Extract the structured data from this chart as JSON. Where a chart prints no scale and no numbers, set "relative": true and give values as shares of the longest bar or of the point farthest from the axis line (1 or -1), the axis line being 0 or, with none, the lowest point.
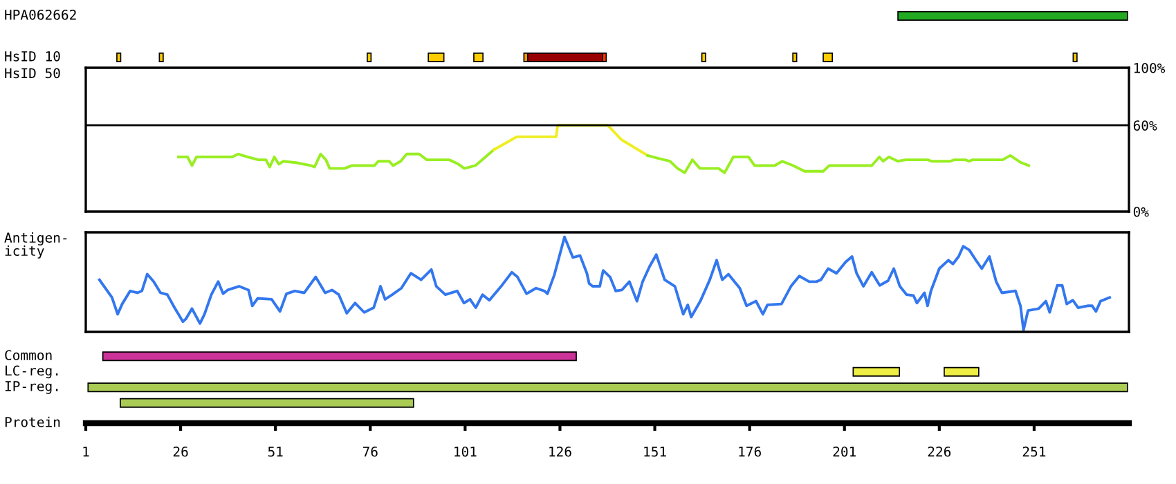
{
  "chart_data": [
    {
      "type": "bar",
      "orientation": "horizontal",
      "categories": [
        "HPA062662"
      ],
      "xlim": [
        1,
        276
      ],
      "tick_labels": "y",
      "series": [
        {
          "color": "#22aa22",
          "base": [
            215.1
          ],
          "values": [
            60.5
          ]
        }
      ]
    },
    {
      "type": "bar",
      "orientation": "horizontal",
      "categories": [
        "HsID 10"
      ],
      "xlim": [
        1,
        276
      ],
      "tick_labels": "y",
      "series": [
        {
          "color": "#ffcc00",
          "base": [
            9.2
          ],
          "values": [
            1
          ]
        },
        {
          "color": "#ffcc00",
          "base": [
            20.4
          ],
          "values": [
            1
          ]
        },
        {
          "color": "#ffcc00",
          "base": [
            75.2
          ],
          "values": [
            1
          ]
        },
        {
          "color": "#ffcc00",
          "base": [
            91.3
          ],
          "values": [
            4.1
          ]
        },
        {
          "color": "#ffcc00",
          "base": [
            103.3
          ],
          "values": [
            2.4
          ]
        },
        {
          "color": "#ff9900",
          "base": [
            116.5
          ],
          "values": [
            1
          ]
        },
        {
          "color": "#990000",
          "base": [
            117.5
          ],
          "values": [
            19.7
          ]
        },
        {
          "color": "#ff3300",
          "base": [
            137.2
          ],
          "values": [
            1
          ]
        },
        {
          "color": "#ffcc00",
          "base": [
            163.4
          ],
          "values": [
            1
          ]
        },
        {
          "color": "#ffcc00",
          "base": [
            187.4
          ],
          "values": [
            1
          ]
        },
        {
          "color": "#ffcc00",
          "base": [
            195.4
          ],
          "values": [
            2.4
          ]
        },
        {
          "color": "#ffcc00",
          "base": [
            261.3
          ],
          "values": [
            1
          ]
        }
      ]
    },
    {
      "type": "line",
      "ylabel": "HsID 50",
      "xlim": [
        1,
        276
      ],
      "ylim": [
        0,
        100
      ],
      "tick_labels": "y",
      "yticks": [
        {
          "value": 0,
          "label": "0%"
        },
        {
          "value": 60,
          "label": "60%"
        },
        {
          "value": 100,
          "label": "100%"
        }
      ],
      "ref_lines": [
        {
          "axis": "y",
          "value": 60,
          "color": "#000000"
        }
      ],
      "series": [
        {
          "color": "#99ee22",
          "x": [
            25.4,
            27.8,
            29.0,
            30.2,
            39.6,
            41.2,
            43.6,
            46.5,
            48.5,
            49.5,
            50.7,
            51.9,
            53.1,
            56.4,
            60.3,
            61.3,
            62.9,
            64.3,
            65.3,
            69.2,
            71.2,
            77.1,
            78.1,
            81.0,
            82.0,
            84.0,
            85.6,
            88.9,
            90.9,
            96.8,
            99.2,
            100.8,
            103.7,
            108.6
          ],
          "values": [
            38,
            38,
            32,
            38,
            38,
            40,
            38,
            36,
            36,
            31,
            38,
            33,
            35,
            34,
            32,
            31,
            40,
            36,
            30,
            30,
            32,
            32,
            35,
            35,
            32,
            35,
            40,
            40,
            36,
            36,
            33,
            30,
            32,
            43
          ]
        },
        {
          "color": "#eeee22",
          "x": [
            108.6,
            114.6,
            125.0,
            125.4,
            138.6,
            142.2,
            149.1
          ],
          "values": [
            43,
            52,
            52,
            60,
            60,
            50,
            39
          ]
        },
        {
          "color": "#99ee22",
          "x": [
            149.1,
            152.0,
            155.0,
            157.0,
            158.9,
            160.9,
            162.9,
            167.8,
            169.4,
            171.7,
            175.7,
            177.3,
            182.6,
            184.6,
            187.5,
            190.5,
            195.4,
            197.0,
            208.2,
            210.2,
            211.2,
            212.7,
            215.1,
            217.1,
            223.0,
            224.0,
            228.9,
            229.9,
            232.9,
            233.8,
            234.8,
            242.7,
            244.7,
            247.6,
            249.6
          ],
          "values": [
            39,
            37,
            35,
            30,
            27,
            36,
            30,
            30,
            27,
            38,
            38,
            32,
            32,
            35,
            32,
            28,
            28,
            32,
            32,
            38,
            35,
            38,
            35,
            36,
            36,
            35,
            35,
            36,
            36,
            35,
            36,
            36,
            39,
            34,
            32
          ]
        }
      ]
    },
    {
      "type": "line",
      "relative": true,
      "ylabel": "Antigen-\nicity",
      "xlim": [
        1,
        276
      ],
      "tick_labels": false,
      "series": [
        {
          "color": "#3377ee",
          "x": [
            4.6,
            7.9,
            9.4,
            10.6,
            12.7,
            14.6,
            15.8,
            17.2,
            18.9,
            20.7,
            22.5,
            24.4,
            26.6,
            27.4,
            29.0,
            31.1,
            32.3,
            34.1,
            35.9,
            37.2,
            38.4,
            41.4,
            43.9,
            44.9,
            46.3,
            50.0,
            52.2,
            53.9,
            56.1,
            58.6,
            61.6,
            64.1,
            65.9,
            67.7,
            69.8,
            72.0,
            74.4,
            76.9,
            78.7,
            79.9,
            81.8,
            84.2,
            86.7,
            89.4,
            92.1,
            93.4,
            95.8,
            98.9,
            100.7,
            102.3,
            103.8,
            105.6,
            107.4,
            110.5,
            113.3,
            114.8,
            117.2,
            119.7,
            121.9,
            122.7,
            124.5,
            127.2,
            129.4,
            131.3,
            133.1,
            133.7,
            134.6,
            136.5,
            137.4,
            139.2,
            140.7,
            142.3,
            144.3,
            146.3,
            147.8,
            149.6,
            151.4,
            153.6,
            156.3,
            158.5,
            159.7,
            160.6,
            163.0,
            165.5,
            167.3,
            168.8,
            170.4,
            173.4,
            175.2,
            177.7,
            179.5,
            180.7,
            184.4,
            186.9,
            189.1,
            191.7,
            193.6,
            194.8,
            196.7,
            198.9,
            201.3,
            203.0,
            204.2,
            206.0,
            208.2,
            210.3,
            212.5,
            214.0,
            215.6,
            217.4,
            219.2,
            220.1,
            222.1,
            222.9,
            223.8,
            226.0,
            228.4,
            229.6,
            231.1,
            232.3,
            233.9,
            235.5,
            237.2,
            239.2,
            241.0,
            242.5,
            246.1,
            247.4,
            248.2,
            249.4,
            252.2,
            254.1,
            255.1,
            257.1,
            258.4,
            259.6,
            261.2,
            262.6,
            265.1,
            266.3,
            267.3,
            268.5,
            270.9
          ],
          "values": [
            0.54,
            0.35,
            0.17,
            0.28,
            0.42,
            0.4,
            0.42,
            0.6,
            0.52,
            0.4,
            0.38,
            0.24,
            0.09,
            0.12,
            0.23,
            0.07,
            0.17,
            0.38,
            0.52,
            0.39,
            0.43,
            0.47,
            0.43,
            0.26,
            0.34,
            0.33,
            0.2,
            0.39,
            0.42,
            0.4,
            0.57,
            0.4,
            0.43,
            0.38,
            0.18,
            0.29,
            0.19,
            0.24,
            0.47,
            0.33,
            0.38,
            0.45,
            0.61,
            0.54,
            0.65,
            0.47,
            0.38,
            0.42,
            0.29,
            0.33,
            0.24,
            0.38,
            0.32,
            0.47,
            0.62,
            0.57,
            0.39,
            0.45,
            0.42,
            0.39,
            0.59,
            1.0,
            0.78,
            0.8,
            0.61,
            0.5,
            0.47,
            0.47,
            0.64,
            0.57,
            0.42,
            0.43,
            0.52,
            0.31,
            0.52,
            0.68,
            0.81,
            0.54,
            0.47,
            0.17,
            0.27,
            0.14,
            0.31,
            0.54,
            0.75,
            0.54,
            0.6,
            0.45,
            0.26,
            0.31,
            0.17,
            0.27,
            0.28,
            0.47,
            0.58,
            0.52,
            0.52,
            0.54,
            0.66,
            0.61,
            0.73,
            0.79,
            0.61,
            0.47,
            0.62,
            0.48,
            0.53,
            0.66,
            0.47,
            0.38,
            0.37,
            0.29,
            0.4,
            0.26,
            0.42,
            0.66,
            0.75,
            0.71,
            0.79,
            0.9,
            0.86,
            0.76,
            0.66,
            0.79,
            0.52,
            0.4,
            0.42,
            0.26,
            0,
            0.21,
            0.23,
            0.31,
            0.19,
            0.48,
            0.48,
            0.28,
            0.32,
            0.24,
            0.26,
            0.26,
            0.2,
            0.31,
            0.35
          ]
        }
      ]
    },
    {
      "type": "bar",
      "orientation": "horizontal",
      "categories": [
        "Common",
        "LC-reg.",
        "IP-reg.",
        null
      ],
      "xlabel": "Protein",
      "xlim": [
        1,
        276
      ],
      "xticks": [
        1,
        26,
        51,
        76,
        101,
        126,
        151,
        176,
        201,
        226,
        251
      ],
      "series": [
        {
          "colors": [
            "#cc3399",
            "#eeee44",
            "#aacc55",
            "#aacc55"
          ],
          "base": [
            5.5,
            203.3,
            1.6,
            10.1
          ],
          "values": [
            124.8,
            12.2,
            274,
            77.3
          ]
        },
        {
          "color": "#eeee44",
          "base": [
            null,
            227.3,
            null,
            null
          ],
          "values": [
            null,
            9.1,
            null,
            null
          ]
        }
      ]
    }
  ]
}
